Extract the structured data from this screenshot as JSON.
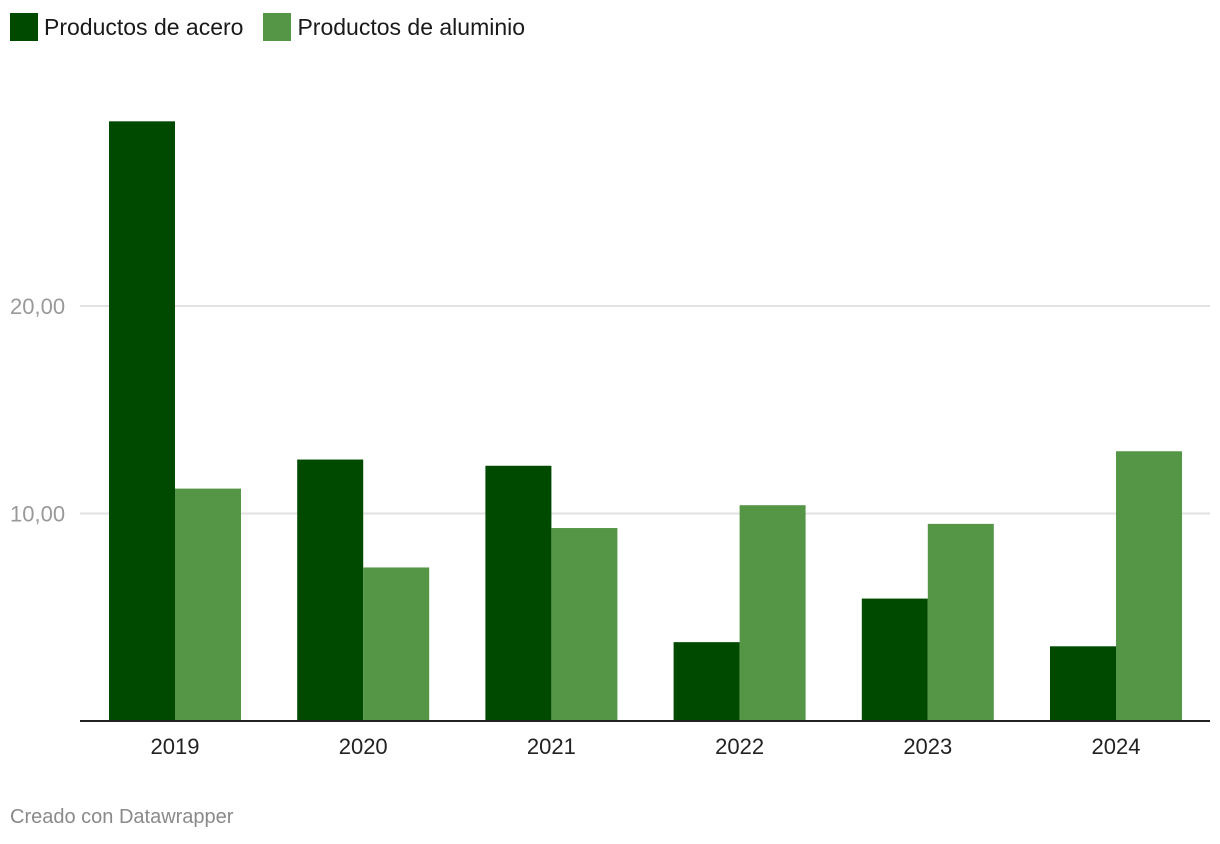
{
  "chart_data": {
    "type": "bar",
    "categories": [
      "2019",
      "2020",
      "2021",
      "2022",
      "2023",
      "2024"
    ],
    "series": [
      {
        "name": "Productos de acero",
        "color": "#004a00",
        "values": [
          28.9,
          12.6,
          12.3,
          3.8,
          5.9,
          3.6
        ]
      },
      {
        "name": "Productos de aluminio",
        "color": "#559546",
        "values": [
          11.2,
          7.4,
          9.3,
          10.4,
          9.5,
          13.0
        ]
      }
    ],
    "yticks": [
      {
        "value": 10,
        "label": "10,00"
      },
      {
        "value": 20,
        "label": "20,00"
      }
    ],
    "ylim": [
      0,
      30
    ],
    "grid": true,
    "legend_position": "top-left",
    "title": "",
    "xlabel": "",
    "ylabel": ""
  },
  "footer": {
    "credit": "Creado con Datawrapper"
  }
}
